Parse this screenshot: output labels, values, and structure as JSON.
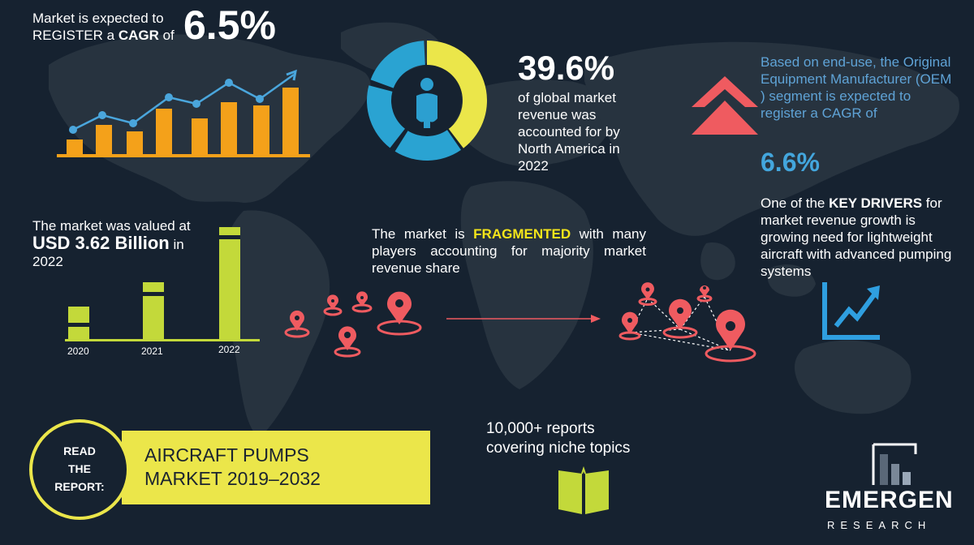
{
  "cagr_block": {
    "line1": "Market is expected to",
    "line2_prefix": "REGISTER a ",
    "line2_bold": "CAGR",
    "line2_suffix": " of",
    "value": "6.5%"
  },
  "north_america": {
    "value": "39.6%",
    "text": "of global market revenue was accounted for by North America in 2022",
    "share_fraction": 0.396
  },
  "oem": {
    "text": "Based on end-use, the Original Equipment Manufacturer (OEM ) segment is expected to register a CAGR of",
    "value": "6.6%"
  },
  "drivers": {
    "prefix": "One of the ",
    "bold": "KEY DRIVERS",
    "suffix": " for market revenue growth is growing need for lightweight aircraft with advanced pumping systems"
  },
  "valuation": {
    "line1": "The market was valued at",
    "value": "USD 3.62 Billion",
    "suffix": " in",
    "year": "2022",
    "years": [
      "2020",
      "2021",
      "2022"
    ]
  },
  "fragmented": {
    "prefix": "The market is ",
    "highlight": "FRAGMENTED",
    "suffix": " with many players accounting for majority market revenue share"
  },
  "reports": {
    "line1": "10,000+ reports",
    "line2": "covering niche topics"
  },
  "banner": {
    "read_label": [
      "READ",
      "THE",
      "REPORT:"
    ],
    "title_line1": "AIRCRAFT PUMPS",
    "title_line2": "MARKET 2019–2032"
  },
  "logo": {
    "word": "EMERGEN",
    "sub": "RESEARCH"
  },
  "colors": {
    "background": "#162230",
    "map": "#2a3643",
    "accent_yellow": "#ebe64a",
    "accent_blue": "#43a6dd",
    "accent_red": "#ef5b60",
    "bar_orange": "#f4a11a",
    "bar_green": "#c3d93a"
  },
  "icons": [
    "growth-chart-icon",
    "donut-person-icon",
    "double-up-arrow-icon",
    "trend-up-icon",
    "location-pin-icon",
    "open-book-icon",
    "emergen-logo-icon"
  ]
}
